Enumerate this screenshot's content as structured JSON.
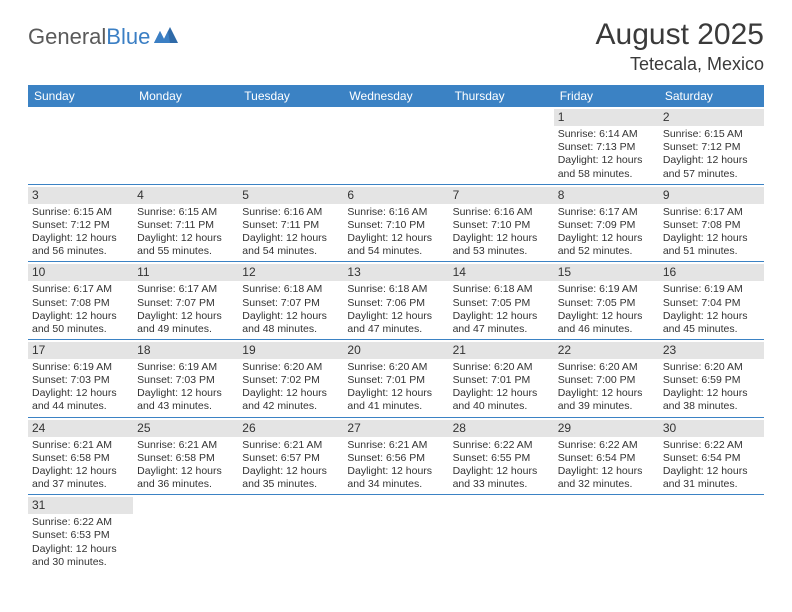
{
  "logo": {
    "text1": "General",
    "text2": "Blue"
  },
  "title": "August 2025",
  "subtitle": "Tetecala, Mexico",
  "colors": {
    "header_bg": "#3b82c4",
    "header_fg": "#ffffff",
    "daynum_bg": "#e4e4e4",
    "row_divider": "#3b82c4",
    "text": "#333333",
    "logo_gray": "#5a5a5a",
    "logo_blue": "#3b7fc4"
  },
  "day_names": [
    "Sunday",
    "Monday",
    "Tuesday",
    "Wednesday",
    "Thursday",
    "Friday",
    "Saturday"
  ],
  "weeks": [
    [
      null,
      null,
      null,
      null,
      null,
      {
        "n": "1",
        "sr": "6:14 AM",
        "ss": "7:13 PM",
        "dl": "12 hours and 58 minutes."
      },
      {
        "n": "2",
        "sr": "6:15 AM",
        "ss": "7:12 PM",
        "dl": "12 hours and 57 minutes."
      }
    ],
    [
      {
        "n": "3",
        "sr": "6:15 AM",
        "ss": "7:12 PM",
        "dl": "12 hours and 56 minutes."
      },
      {
        "n": "4",
        "sr": "6:15 AM",
        "ss": "7:11 PM",
        "dl": "12 hours and 55 minutes."
      },
      {
        "n": "5",
        "sr": "6:16 AM",
        "ss": "7:11 PM",
        "dl": "12 hours and 54 minutes."
      },
      {
        "n": "6",
        "sr": "6:16 AM",
        "ss": "7:10 PM",
        "dl": "12 hours and 54 minutes."
      },
      {
        "n": "7",
        "sr": "6:16 AM",
        "ss": "7:10 PM",
        "dl": "12 hours and 53 minutes."
      },
      {
        "n": "8",
        "sr": "6:17 AM",
        "ss": "7:09 PM",
        "dl": "12 hours and 52 minutes."
      },
      {
        "n": "9",
        "sr": "6:17 AM",
        "ss": "7:08 PM",
        "dl": "12 hours and 51 minutes."
      }
    ],
    [
      {
        "n": "10",
        "sr": "6:17 AM",
        "ss": "7:08 PM",
        "dl": "12 hours and 50 minutes."
      },
      {
        "n": "11",
        "sr": "6:17 AM",
        "ss": "7:07 PM",
        "dl": "12 hours and 49 minutes."
      },
      {
        "n": "12",
        "sr": "6:18 AM",
        "ss": "7:07 PM",
        "dl": "12 hours and 48 minutes."
      },
      {
        "n": "13",
        "sr": "6:18 AM",
        "ss": "7:06 PM",
        "dl": "12 hours and 47 minutes."
      },
      {
        "n": "14",
        "sr": "6:18 AM",
        "ss": "7:05 PM",
        "dl": "12 hours and 47 minutes."
      },
      {
        "n": "15",
        "sr": "6:19 AM",
        "ss": "7:05 PM",
        "dl": "12 hours and 46 minutes."
      },
      {
        "n": "16",
        "sr": "6:19 AM",
        "ss": "7:04 PM",
        "dl": "12 hours and 45 minutes."
      }
    ],
    [
      {
        "n": "17",
        "sr": "6:19 AM",
        "ss": "7:03 PM",
        "dl": "12 hours and 44 minutes."
      },
      {
        "n": "18",
        "sr": "6:19 AM",
        "ss": "7:03 PM",
        "dl": "12 hours and 43 minutes."
      },
      {
        "n": "19",
        "sr": "6:20 AM",
        "ss": "7:02 PM",
        "dl": "12 hours and 42 minutes."
      },
      {
        "n": "20",
        "sr": "6:20 AM",
        "ss": "7:01 PM",
        "dl": "12 hours and 41 minutes."
      },
      {
        "n": "21",
        "sr": "6:20 AM",
        "ss": "7:01 PM",
        "dl": "12 hours and 40 minutes."
      },
      {
        "n": "22",
        "sr": "6:20 AM",
        "ss": "7:00 PM",
        "dl": "12 hours and 39 minutes."
      },
      {
        "n": "23",
        "sr": "6:20 AM",
        "ss": "6:59 PM",
        "dl": "12 hours and 38 minutes."
      }
    ],
    [
      {
        "n": "24",
        "sr": "6:21 AM",
        "ss": "6:58 PM",
        "dl": "12 hours and 37 minutes."
      },
      {
        "n": "25",
        "sr": "6:21 AM",
        "ss": "6:58 PM",
        "dl": "12 hours and 36 minutes."
      },
      {
        "n": "26",
        "sr": "6:21 AM",
        "ss": "6:57 PM",
        "dl": "12 hours and 35 minutes."
      },
      {
        "n": "27",
        "sr": "6:21 AM",
        "ss": "6:56 PM",
        "dl": "12 hours and 34 minutes."
      },
      {
        "n": "28",
        "sr": "6:22 AM",
        "ss": "6:55 PM",
        "dl": "12 hours and 33 minutes."
      },
      {
        "n": "29",
        "sr": "6:22 AM",
        "ss": "6:54 PM",
        "dl": "12 hours and 32 minutes."
      },
      {
        "n": "30",
        "sr": "6:22 AM",
        "ss": "6:54 PM",
        "dl": "12 hours and 31 minutes."
      }
    ],
    [
      {
        "n": "31",
        "sr": "6:22 AM",
        "ss": "6:53 PM",
        "dl": "12 hours and 30 minutes."
      },
      null,
      null,
      null,
      null,
      null,
      null
    ]
  ],
  "labels": {
    "sunrise": "Sunrise:",
    "sunset": "Sunset:",
    "daylight": "Daylight:"
  }
}
